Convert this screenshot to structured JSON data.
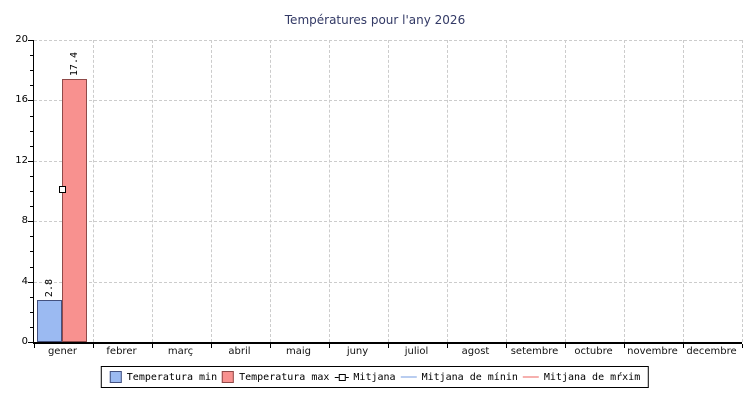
{
  "chart_data": {
    "type": "bar",
    "title": "Températures pour l'any 2026",
    "categories": [
      "gener",
      "febrer",
      "març",
      "abril",
      "maig",
      "juny",
      "juliol",
      "agost",
      "setembre",
      "octubre",
      "novembre",
      "decembre"
    ],
    "series": [
      {
        "name": "Temperatura min",
        "type": "bar",
        "values": [
          2.8,
          null,
          null,
          null,
          null,
          null,
          null,
          null,
          null,
          null,
          null,
          null
        ]
      },
      {
        "name": "Temperatura max",
        "type": "bar",
        "values": [
          17.4,
          null,
          null,
          null,
          null,
          null,
          null,
          null,
          null,
          null,
          null,
          null
        ]
      },
      {
        "name": "Mitjana",
        "type": "point",
        "values": [
          10.1,
          null,
          null,
          null,
          null,
          null,
          null,
          null,
          null,
          null,
          null,
          null
        ]
      },
      {
        "name": "Mitjana de mínin",
        "type": "line",
        "values": [
          null,
          null,
          null,
          null,
          null,
          null,
          null,
          null,
          null,
          null,
          null,
          null
        ]
      },
      {
        "name": "Mitjana de mŕxim",
        "type": "line",
        "values": [
          null,
          null,
          null,
          null,
          null,
          null,
          null,
          null,
          null,
          null,
          null,
          null
        ]
      }
    ],
    "ylim": [
      0,
      20
    ],
    "y_major_step": 4,
    "y_minor_step": 1,
    "y_tick_labels": [
      "0",
      "4",
      "8",
      "12",
      "16",
      "20"
    ],
    "grid": "dashed",
    "legend_position": "bottom",
    "bar_value_labels": [
      "2.8",
      "17.4"
    ]
  },
  "colors": {
    "title": "#333a66",
    "grid": "#cccccc",
    "axis": "#000000",
    "bar_min_fill": "#9bbaf2",
    "bar_min_border": "#44517f",
    "bar_max_fill": "#f8918f",
    "bar_max_border": "#8f4a49",
    "mean_line_min": "#b9cdf0",
    "mean_line_max": "#f6b0ae",
    "marker_fill": "#ffffff",
    "marker_border": "#000000"
  },
  "legend": {
    "items": [
      {
        "label": "Temperatura min",
        "swatch": "box",
        "color": "#9bbaf2",
        "border": "#44517f"
      },
      {
        "label": "Temperatura max",
        "swatch": "box",
        "color": "#f8918f",
        "border": "#8f4a49"
      },
      {
        "label": "Mitjana",
        "swatch": "marker",
        "color": "#000000",
        "border": "#000000"
      },
      {
        "label": "Mitjana de mínin",
        "swatch": "line",
        "color": "#b9cdf0",
        "border": "#b9cdf0"
      },
      {
        "label": "Mitjana de mŕxim",
        "swatch": "line",
        "color": "#f6b0ae",
        "border": "#f6b0ae"
      }
    ]
  }
}
